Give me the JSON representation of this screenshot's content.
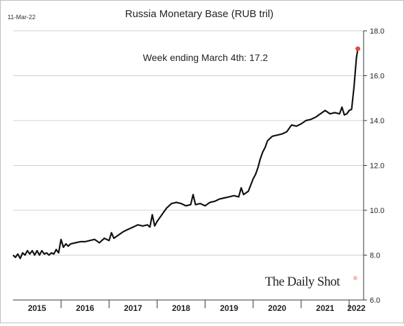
{
  "date_stamp": "11-Mar-22",
  "annotation": "Week ending March 4th:  17.2",
  "brand": {
    "name": "The Daily Shot",
    "mark": "®"
  },
  "colors": {
    "line": "#111111",
    "grid": "#d0d0d0",
    "highlight": "#e74c3c",
    "axis": "#333333"
  },
  "chart_data": {
    "type": "line",
    "title": "Russia Monetary Base (RUB tril)",
    "xlabel": "",
    "ylabel": "",
    "ylim": [
      6.0,
      18.0
    ],
    "yticks": [
      "6.0",
      "8.0",
      "10.0",
      "12.0",
      "14.0",
      "16.0",
      "18.0"
    ],
    "xlim": [
      2015.0,
      2022.3
    ],
    "year_labels": [
      "2015",
      "2016",
      "2017",
      "2018",
      "2019",
      "2020",
      "2021",
      "2022"
    ],
    "grid": true,
    "highlight_point": {
      "x": 2022.18,
      "y": 17.2
    },
    "series": [
      {
        "x": [
          2015.0,
          2015.05,
          2015.1,
          2015.15,
          2015.2,
          2015.25,
          2015.3,
          2015.35,
          2015.4,
          2015.45,
          2015.5,
          2015.55,
          2015.6,
          2015.65,
          2015.7,
          2015.75,
          2015.8,
          2015.85,
          2015.9,
          2015.95,
          2016.0,
          2016.05,
          2016.1,
          2016.15,
          2016.2,
          2016.3,
          2016.4,
          2016.5,
          2016.6,
          2016.7,
          2016.8,
          2016.9,
          2017.0,
          2017.05,
          2017.1,
          2017.2,
          2017.3,
          2017.4,
          2017.5,
          2017.6,
          2017.7,
          2017.8,
          2017.85,
          2017.9,
          2017.95,
          2018.0,
          2018.1,
          2018.2,
          2018.3,
          2018.4,
          2018.5,
          2018.6,
          2018.7,
          2018.75,
          2018.8,
          2018.9,
          2019.0,
          2019.1,
          2019.2,
          2019.3,
          2019.4,
          2019.5,
          2019.6,
          2019.7,
          2019.75,
          2019.8,
          2019.9,
          2020.0,
          2020.05,
          2020.1,
          2020.15,
          2020.2,
          2020.25,
          2020.3,
          2020.4,
          2020.5,
          2020.6,
          2020.7,
          2020.8,
          2020.9,
          2021.0,
          2021.1,
          2021.2,
          2021.3,
          2021.4,
          2021.5,
          2021.6,
          2021.7,
          2021.8,
          2021.85,
          2021.9,
          2021.95,
          2022.0,
          2022.05,
          2022.1,
          2022.15,
          2022.18
        ],
        "y": [
          8.0,
          7.9,
          8.05,
          7.85,
          8.1,
          8.0,
          8.2,
          8.05,
          8.2,
          8.0,
          8.2,
          8.0,
          8.2,
          8.05,
          8.1,
          8.0,
          8.1,
          8.05,
          8.25,
          8.1,
          8.7,
          8.35,
          8.5,
          8.4,
          8.5,
          8.55,
          8.6,
          8.6,
          8.65,
          8.7,
          8.55,
          8.75,
          8.65,
          9.0,
          8.75,
          8.9,
          9.05,
          9.15,
          9.25,
          9.35,
          9.3,
          9.35,
          9.25,
          9.8,
          9.3,
          9.5,
          9.8,
          10.1,
          10.3,
          10.35,
          10.3,
          10.2,
          10.25,
          10.7,
          10.25,
          10.3,
          10.2,
          10.35,
          10.4,
          10.5,
          10.55,
          10.6,
          10.65,
          10.6,
          11.0,
          10.7,
          10.85,
          11.4,
          11.6,
          11.9,
          12.3,
          12.6,
          12.8,
          13.1,
          13.3,
          13.35,
          13.4,
          13.5,
          13.8,
          13.75,
          13.85,
          14.0,
          14.05,
          14.15,
          14.3,
          14.45,
          14.3,
          14.35,
          14.3,
          14.6,
          14.25,
          14.3,
          14.45,
          14.5,
          15.5,
          16.8,
          17.2
        ]
      }
    ]
  }
}
